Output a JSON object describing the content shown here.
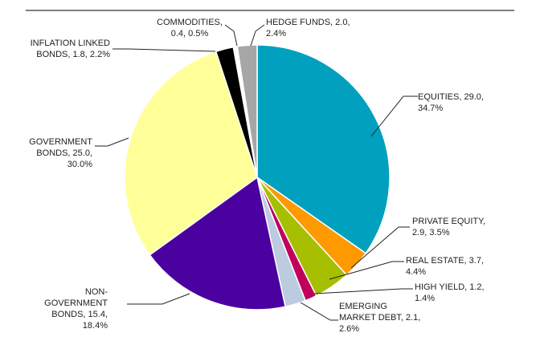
{
  "chart_data": {
    "type": "pie",
    "title": "",
    "legend": "none",
    "slices": [
      {
        "name": "EQUITIES",
        "value": 29.0,
        "percent": 34.7,
        "color": "#00A0BE",
        "label_lines": [
          "EQUITIES, 29.0,",
          "34.7%"
        ]
      },
      {
        "name": "PRIVATE EQUITY",
        "value": 2.9,
        "percent": 3.5,
        "color": "#FF9900",
        "label_lines": [
          "PRIVATE EQUITY,",
          "2.9, 3.5%"
        ]
      },
      {
        "name": "REAL ESTATE",
        "value": 3.7,
        "percent": 4.4,
        "color": "#A6BF00",
        "label_lines": [
          "REAL ESTATE, 3.7,",
          "4.4%"
        ]
      },
      {
        "name": "HIGH YIELD",
        "value": 1.2,
        "percent": 1.4,
        "color": "#C0005A",
        "label_lines": [
          "HIGH YIELD, 1.2,",
          "1.4%"
        ]
      },
      {
        "name": "EMERGING MARKET DEBT",
        "value": 2.1,
        "percent": 2.6,
        "color": "#BCCBE0",
        "label_lines": [
          "EMERGING",
          "MARKET DEBT, 2.1,",
          "2.6%"
        ]
      },
      {
        "name": "NON-GOVERNMENT BONDS",
        "value": 15.4,
        "percent": 18.4,
        "color": "#4B00A0",
        "label_lines": [
          "NON-",
          "GOVERNMENT",
          "BONDS, 15.4,",
          "18.4%"
        ]
      },
      {
        "name": "GOVERNMENT BONDS",
        "value": 25.0,
        "percent": 30.0,
        "color": "#FFFF99",
        "label_lines": [
          "GOVERNMENT",
          "BONDS, 25.0,",
          "30.0%"
        ]
      },
      {
        "name": "INFLATION LINKED BONDS",
        "value": 1.8,
        "percent": 2.2,
        "color": "#000000",
        "label_lines": [
          "INFLATION LINKED",
          "BONDS, 1.8, 2.2%"
        ]
      },
      {
        "name": "COMMODITIES",
        "value": 0.4,
        "percent": 0.5,
        "color": "#FFFFFF",
        "label_lines": [
          "COMMODITIES,",
          "0.4, 0.5%"
        ]
      },
      {
        "name": "HEDGE FUNDS",
        "value": 2.0,
        "percent": 2.4,
        "color": "#A6A6A6",
        "label_lines": [
          "HEDGE FUNDS, 2.0,",
          "2.4%"
        ]
      }
    ]
  }
}
